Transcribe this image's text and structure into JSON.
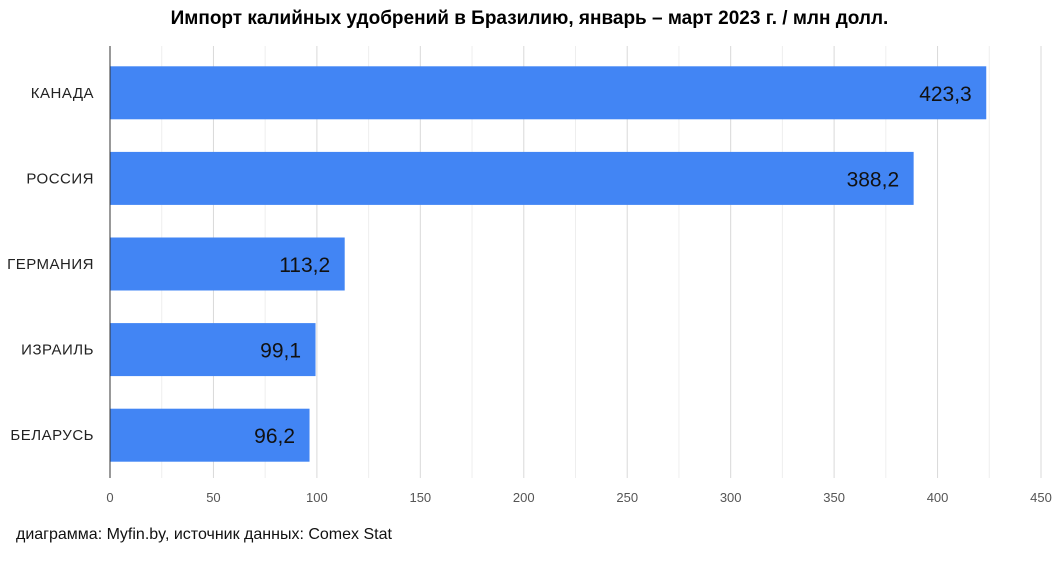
{
  "title": "Импорт калийных удобрений в Бразилию, январь – март 2023 г. / млн долл.",
  "footer": "диаграмма: Myfin.by, источник данных: Comex Stat",
  "chart_data": {
    "type": "bar",
    "orientation": "horizontal",
    "title": "Импорт калийных удобрений в Бразилию, январь – март 2023 г. / млн долл.",
    "categories": [
      "КАНАДА",
      "РОССИЯ",
      "ГЕРМАНИЯ",
      "ИЗРАИЛЬ",
      "БЕЛАРУСЬ"
    ],
    "values": [
      423.3,
      388.2,
      113.2,
      99.1,
      96.2
    ],
    "value_labels": [
      "423,3",
      "388,2",
      "113,2",
      "99,1",
      "96,2"
    ],
    "xlim": [
      0,
      450
    ],
    "xticks": [
      0,
      50,
      100,
      150,
      200,
      250,
      300,
      350,
      400,
      450
    ],
    "grid": true,
    "bar_color": "#4285f4"
  }
}
